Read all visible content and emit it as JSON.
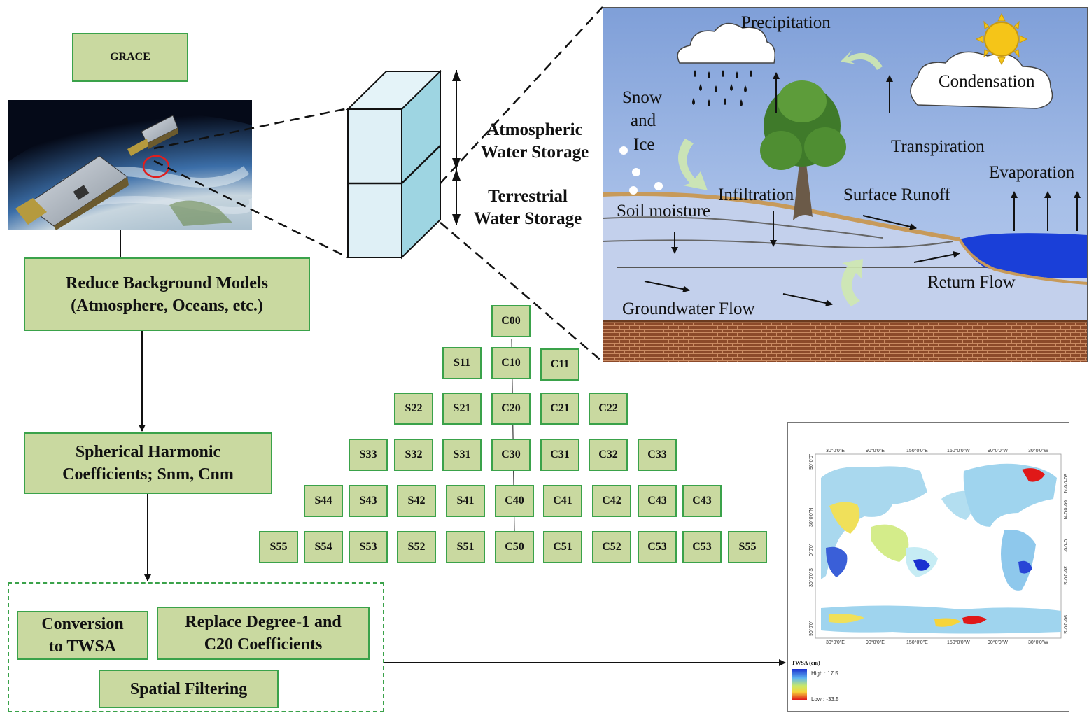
{
  "grace_label": "GRACE",
  "steps": {
    "reduce": [
      "Reduce Background Models",
      "(Atmosphere, Oceans, etc.)"
    ],
    "sh": [
      "Spherical Harmonic",
      "Coefficients; Snm, Cnm"
    ],
    "conversion": [
      "Conversion",
      "to TWSA"
    ],
    "replace": [
      "Replace Degree-1 and",
      "C20 Coefficients"
    ],
    "filtering": "Spatial Filtering"
  },
  "storage": {
    "atmospheric": [
      "Atmospheric",
      "Water Storage"
    ],
    "terrestrial": [
      "Terrestrial",
      "Water Storage"
    ]
  },
  "coefficients": [
    [
      "C00"
    ],
    [
      "S11",
      "C10",
      "C11"
    ],
    [
      "S22",
      "S21",
      "C20",
      "C21",
      "C22"
    ],
    [
      "S33",
      "S32",
      "S31",
      "C30",
      "C31",
      "C32",
      "C33"
    ],
    [
      "S44",
      "S43",
      "S42",
      "S41",
      "C40",
      "C41",
      "C42",
      "C43",
      "C43"
    ],
    [
      "S55",
      "S54",
      "S53",
      "S52",
      "S51",
      "C50",
      "C51",
      "C52",
      "C53",
      "C53",
      "S55"
    ]
  ],
  "hydro_cycle": {
    "precipitation": "Precipitation",
    "condensation": "Condensation",
    "snow": [
      "Snow",
      "and",
      "Ice"
    ],
    "transpiration": "Transpiration",
    "evaporation": "Evaporation",
    "infiltration": "Infiltration",
    "surface_runoff": "Surface Runoff",
    "soil_moisture": "Soil moisture",
    "return_flow": "Return Flow",
    "groundwater_flow": "Groundwater Flow"
  },
  "map": {
    "top_ticks": [
      "30°0'0\"E",
      "90°0'0\"E",
      "150°0'0\"E",
      "150°0'0\"W",
      "90°0'0\"W",
      "30°0'0\"W"
    ],
    "bottom_ticks": [
      "30°0'0\"E",
      "90°0'0\"E",
      "150°0'0\"E",
      "150°0'0\"W",
      "90°0'0\"W",
      "30°0'0\"W"
    ],
    "left_ticks": [
      "90°0'0\"",
      "30°0'0\"N",
      "0°0'0\"",
      "30°0'0\"S",
      "90°0'0\""
    ],
    "right_ticks": [
      "90°0'0\"N",
      "60°0'0\"N",
      "0°0'0\"",
      "30°0'0\"S",
      "90°0'0\"S"
    ],
    "legend_title": "TWSA (cm)",
    "legend_high": "High : 17.5",
    "legend_low": "Low : -33.5"
  },
  "colors": {
    "box_fill": "#c9d9a0",
    "box_border": "#3aa24a"
  }
}
